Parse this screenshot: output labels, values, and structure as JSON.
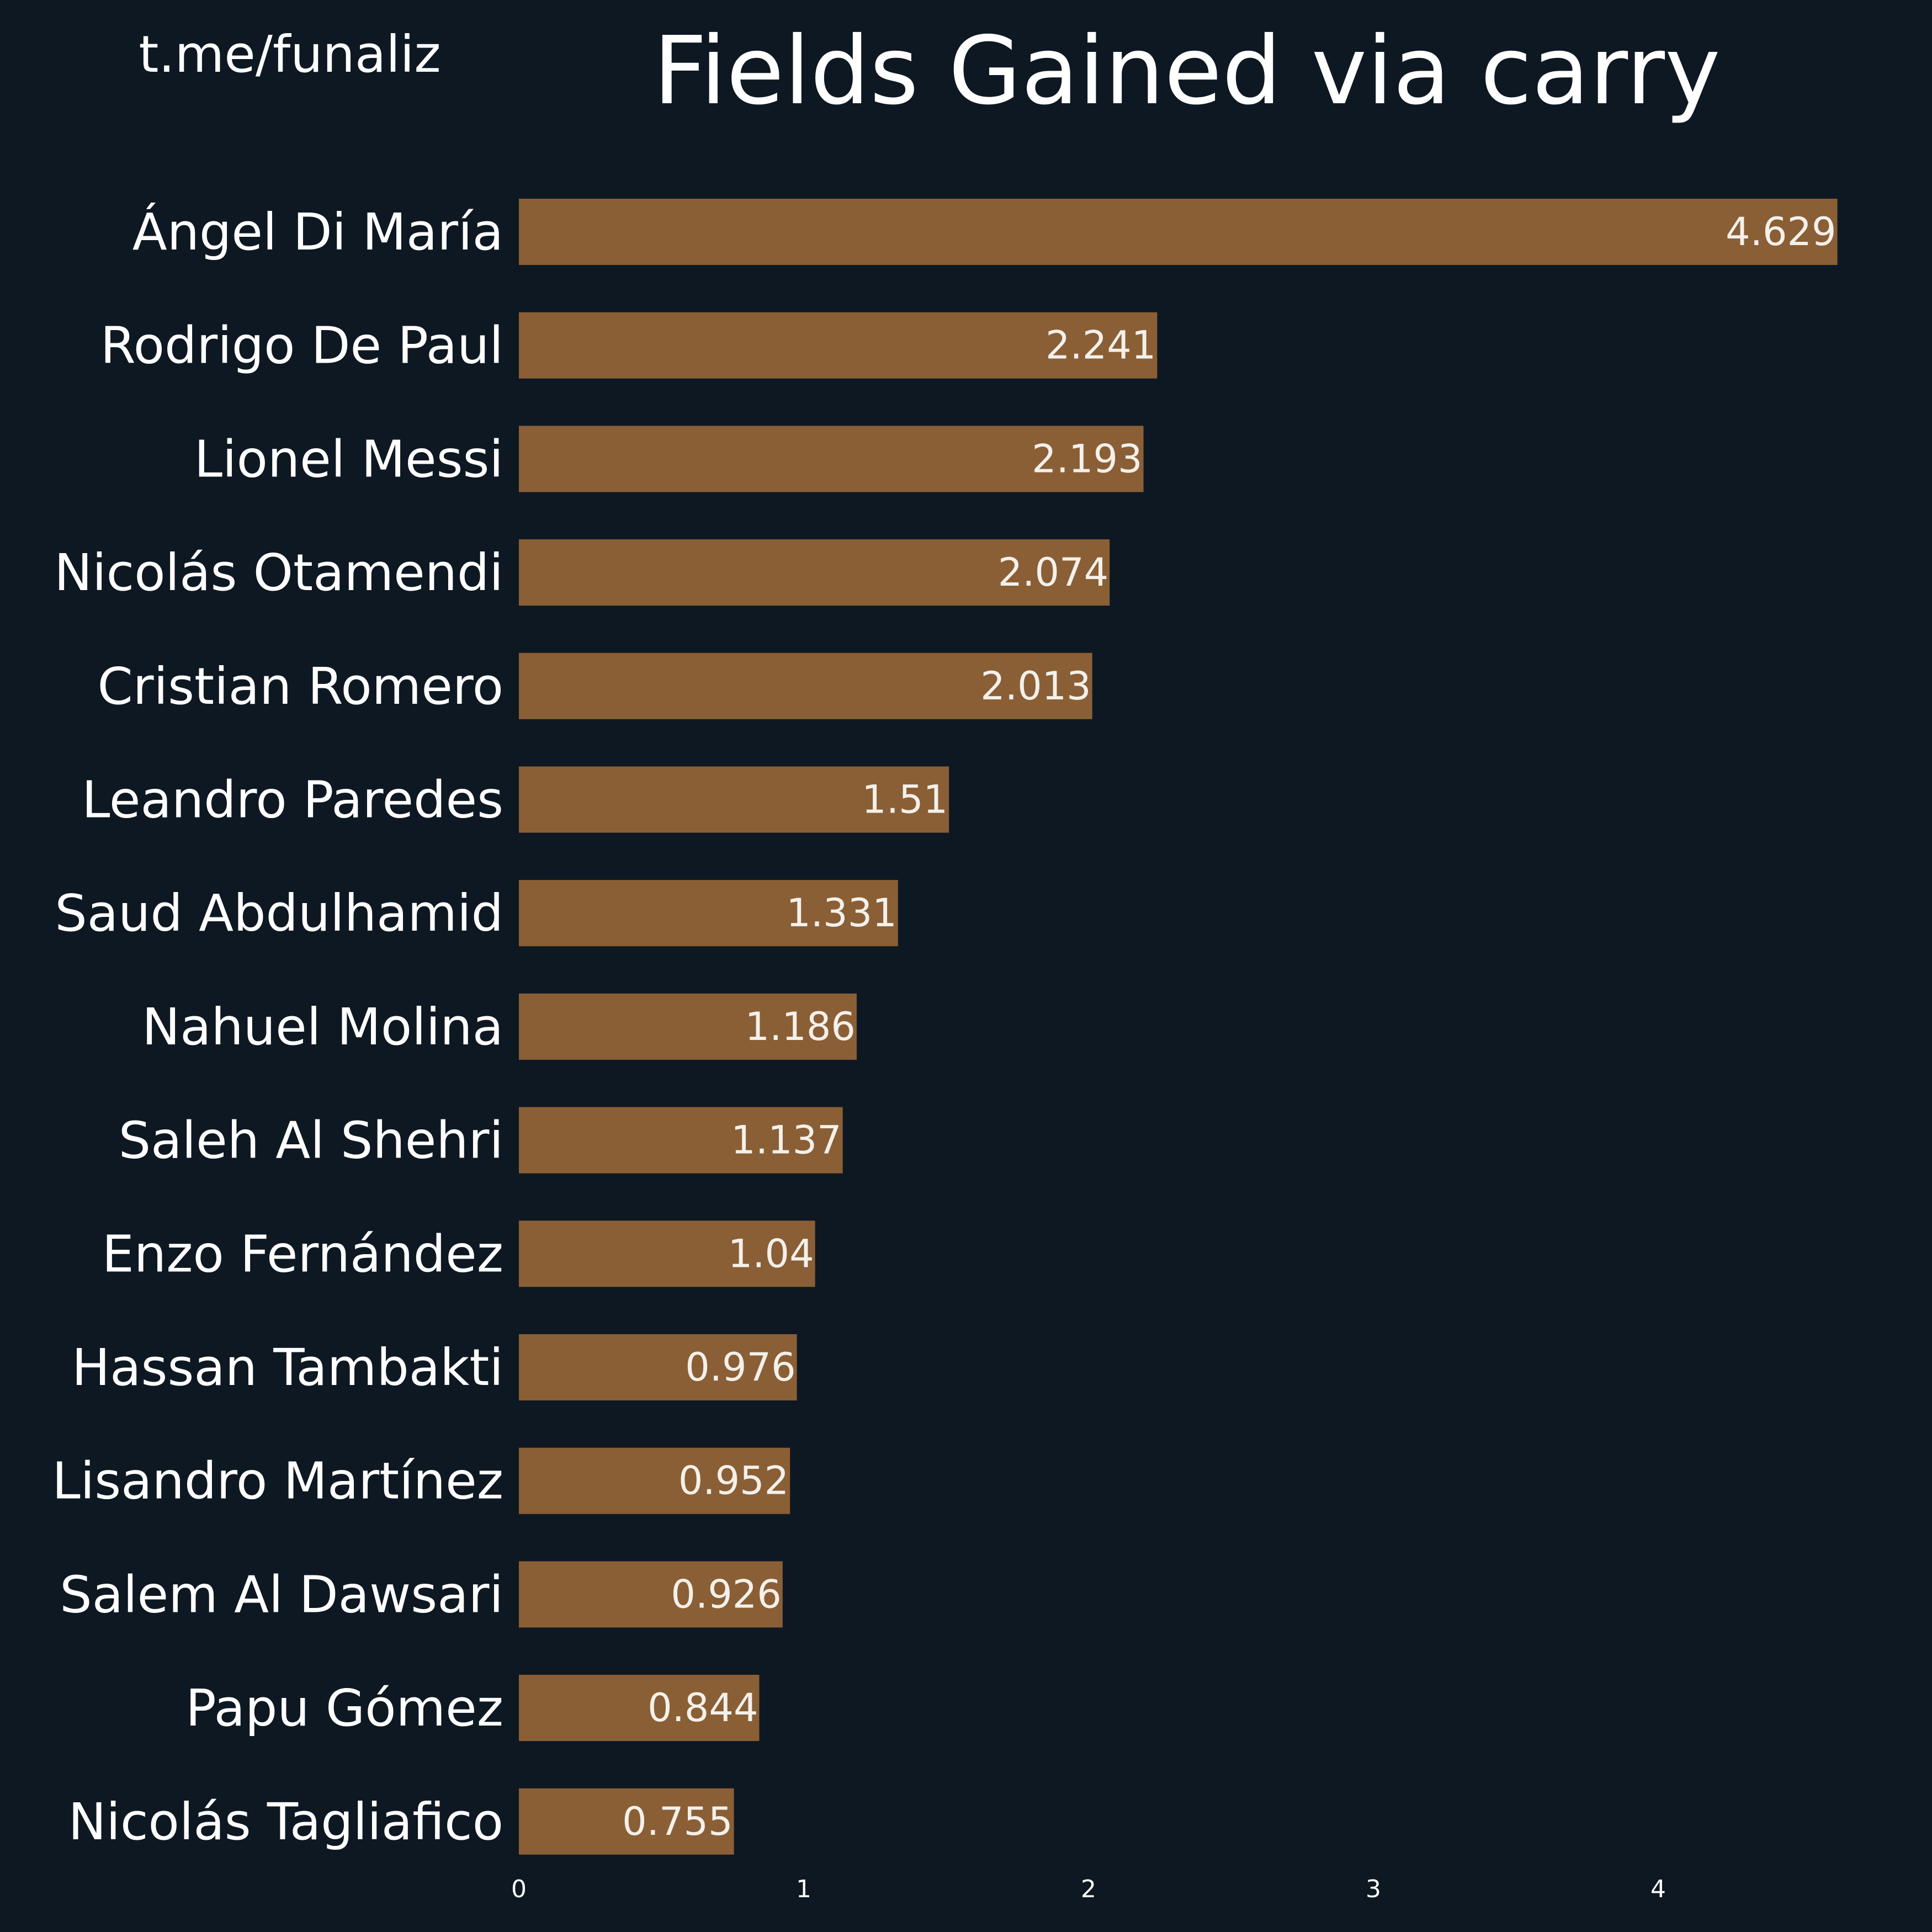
{
  "watermark": "t.me/funaliz",
  "chart_data": {
    "type": "bar",
    "orientation": "horizontal",
    "title": "Fields Gained via carry",
    "categories": [
      "Ángel Di María",
      "Rodrigo De Paul",
      "Lionel Messi",
      "Nicolás Otamendi",
      "Cristian Romero",
      "Leandro Paredes",
      "Saud Abdulhamid",
      "Nahuel Molina",
      "Saleh Al Shehri",
      "Enzo Fernández",
      "Hassan Tambakti",
      "Lisandro Martínez",
      "Salem Al Dawsari",
      "Papu Gómez",
      "Nicolás Tagliafico"
    ],
    "values": [
      4.629,
      2.241,
      2.193,
      2.074,
      2.013,
      1.51,
      1.331,
      1.186,
      1.137,
      1.04,
      0.976,
      0.952,
      0.926,
      0.844,
      0.755
    ],
    "data_labels": [
      "4.629",
      "2.241",
      "2.193",
      "2.074",
      "2.013",
      "1.51",
      "1.331",
      "1.186",
      "1.137",
      "1.04",
      "0.976",
      "0.952",
      "0.926",
      "0.844",
      "0.755"
    ],
    "xticks": [
      "0",
      "1",
      "2",
      "3",
      "4"
    ],
    "xlim": [
      0,
      4.65
    ],
    "grid": false,
    "colors": {
      "background": "#0e1822",
      "bar": "#8a5f36",
      "text": "#ffffff"
    }
  }
}
